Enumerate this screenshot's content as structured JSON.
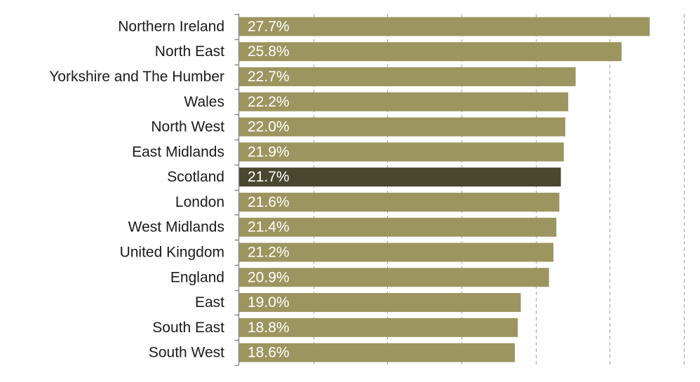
{
  "chart_data": {
    "type": "bar",
    "orientation": "horizontal",
    "title": "",
    "xlabel": "",
    "ylabel": "",
    "categories": [
      "Northern Ireland",
      "North East",
      "Yorkshire and The Humber",
      "Wales",
      "North West",
      "East Midlands",
      "Scotland",
      "London",
      "West Midlands",
      "United Kingdom",
      "England",
      "East",
      "South East",
      "South West"
    ],
    "values": [
      27.7,
      25.8,
      22.7,
      22.2,
      22.0,
      21.9,
      21.7,
      21.6,
      21.4,
      21.2,
      20.9,
      19.0,
      18.8,
      18.6
    ],
    "value_labels": [
      "27.7%",
      "25.8%",
      "22.7%",
      "22.2%",
      "22.0%",
      "21.9%",
      "21.7%",
      "21.6%",
      "21.4%",
      "21.2%",
      "20.9%",
      "19.0%",
      "18.8%",
      "18.6%"
    ],
    "highlight_category": "Scotland",
    "xlim": [
      0,
      30
    ],
    "grid": true,
    "grid_step": 5,
    "legend": "none",
    "colors": {
      "bar": "#9d955f",
      "highlight": "#4a472f"
    }
  }
}
